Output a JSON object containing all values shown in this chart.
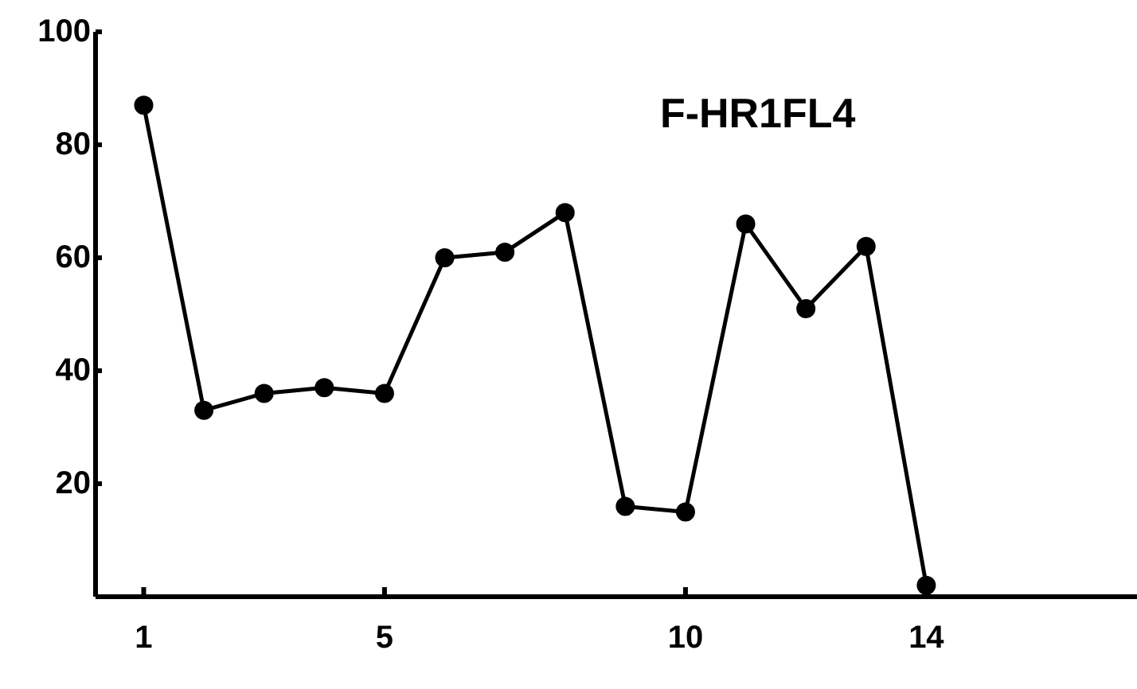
{
  "chart_data": {
    "type": "line",
    "title": "F-HR1FL4",
    "x": [
      1,
      2,
      3,
      4,
      5,
      6,
      7,
      8,
      9,
      10,
      11,
      12,
      13,
      14
    ],
    "series": [
      {
        "color": "#000000",
        "values": [
          87,
          33,
          36,
          37,
          36,
          60,
          61,
          68,
          16,
          15,
          66,
          51,
          62,
          2
        ]
      }
    ],
    "xlim": [
      0.2,
      17.5
    ],
    "xticks": [
      1,
      5,
      10,
      14
    ],
    "ylim": [
      0,
      100
    ],
    "yticks": [
      20,
      40,
      60,
      80,
      100
    ],
    "marker": "circle",
    "line_style": "solid"
  }
}
